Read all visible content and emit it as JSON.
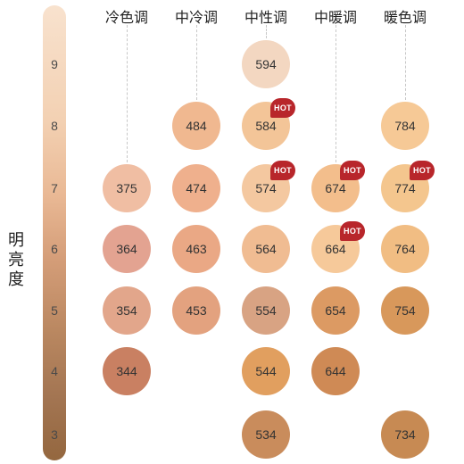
{
  "axis": {
    "title_chars": [
      "明",
      "亮",
      "度"
    ],
    "levels": [
      "9",
      "8",
      "7",
      "6",
      "5",
      "4",
      "3"
    ]
  },
  "columns": [
    {
      "label": "冷色调"
    },
    {
      "label": "中冷调"
    },
    {
      "label": "中性调"
    },
    {
      "label": "中暖调"
    },
    {
      "label": "暖色调"
    }
  ],
  "badge_text": "HOT",
  "swatches": [
    {
      "code": "594",
      "column": 2,
      "level": "9",
      "color": "#f3d7c1",
      "hot": false
    },
    {
      "code": "484",
      "column": 1,
      "level": "8",
      "color": "#f0b890",
      "hot": false
    },
    {
      "code": "584",
      "column": 2,
      "level": "8",
      "color": "#f3c598",
      "hot": true
    },
    {
      "code": "784",
      "column": 4,
      "level": "8",
      "color": "#f6c996",
      "hot": false
    },
    {
      "code": "375",
      "column": 0,
      "level": "7",
      "color": "#f0bea3",
      "hot": false
    },
    {
      "code": "474",
      "column": 1,
      "level": "7",
      "color": "#efb08d",
      "hot": false
    },
    {
      "code": "574",
      "column": 2,
      "level": "7",
      "color": "#f4c8a0",
      "hot": true
    },
    {
      "code": "674",
      "column": 3,
      "level": "7",
      "color": "#f3be8c",
      "hot": true
    },
    {
      "code": "774",
      "column": 4,
      "level": "7",
      "color": "#f4c68e",
      "hot": true
    },
    {
      "code": "364",
      "column": 0,
      "level": "6",
      "color": "#e3a391",
      "hot": false
    },
    {
      "code": "463",
      "column": 1,
      "level": "6",
      "color": "#eaa885",
      "hot": false
    },
    {
      "code": "564",
      "column": 2,
      "level": "6",
      "color": "#f0bc92",
      "hot": false
    },
    {
      "code": "664",
      "column": 3,
      "level": "6",
      "color": "#f6c99a",
      "hot": true
    },
    {
      "code": "764",
      "column": 4,
      "level": "6",
      "color": "#f1bd83",
      "hot": false
    },
    {
      "code": "354",
      "column": 0,
      "level": "5",
      "color": "#e2a68b",
      "hot": false
    },
    {
      "code": "453",
      "column": 1,
      "level": "5",
      "color": "#e3a27f",
      "hot": false
    },
    {
      "code": "554",
      "column": 2,
      "level": "5",
      "color": "#d8a383",
      "hot": false
    },
    {
      "code": "654",
      "column": 3,
      "level": "5",
      "color": "#dc9a63",
      "hot": false
    },
    {
      "code": "754",
      "column": 4,
      "level": "5",
      "color": "#d8985b",
      "hot": false
    },
    {
      "code": "344",
      "column": 0,
      "level": "4",
      "color": "#c98062",
      "hot": false
    },
    {
      "code": "544",
      "column": 2,
      "level": "4",
      "color": "#e19f5f",
      "hot": false
    },
    {
      "code": "644",
      "column": 3,
      "level": "4",
      "color": "#cf8a55",
      "hot": false
    },
    {
      "code": "534",
      "column": 2,
      "level": "3",
      "color": "#c98c5c",
      "hot": false
    },
    {
      "code": "734",
      "column": 4,
      "level": "3",
      "color": "#c78a53",
      "hot": false
    }
  ]
}
